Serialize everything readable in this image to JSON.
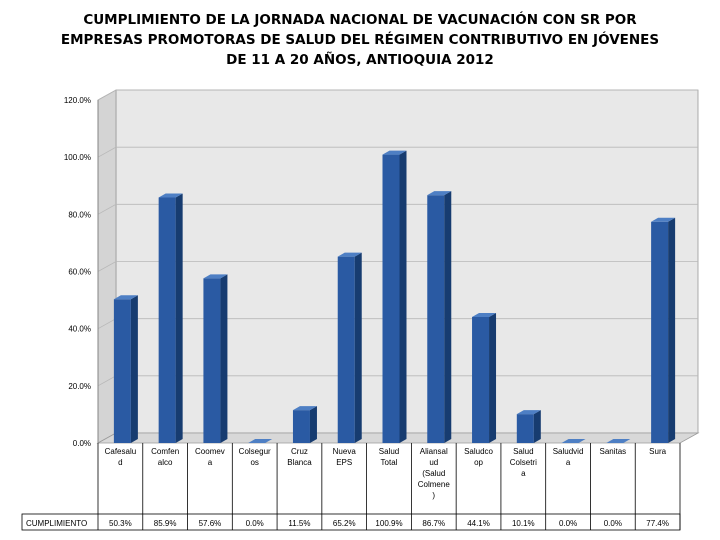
{
  "chart_data": {
    "type": "bar",
    "title_lines": [
      "CUMPLIMIENTO DE LA JORNADA NACIONAL DE VACUNACIÓN CON SR POR",
      "EMPRESAS PROMOTORAS  DE SALUD DEL RÉGIMEN CONTRIBUTIVO EN JÓVENES",
      "DE 11 A 20 AÑOS, ANTIOQUIA 2012"
    ],
    "yticks": [
      "0.0%",
      "20.0%",
      "40.0%",
      "60.0%",
      "80.0%",
      "100.0%",
      "120.0%"
    ],
    "ylim": [
      0,
      120
    ],
    "table_row_label": "CUMPLIMIENTO",
    "categories": [
      [
        "Cafesalu",
        "d"
      ],
      [
        "Comfen",
        "alco"
      ],
      [
        "Coomev",
        "a"
      ],
      [
        "Colsegur",
        "os"
      ],
      [
        "Cruz",
        "Blanca"
      ],
      [
        "Nueva",
        "EPS"
      ],
      [
        "Salud",
        "Total"
      ],
      [
        "Aliansal",
        "ud",
        "(Salud",
        "Colmene",
        ")"
      ],
      [
        "Saludco",
        "op"
      ],
      [
        "Salud",
        "Colsetri",
        "a"
      ],
      [
        "Saludvid",
        "a"
      ],
      [
        "Sanitas"
      ],
      [
        "Sura"
      ]
    ],
    "values": [
      50.3,
      85.9,
      57.6,
      0.0,
      11.5,
      65.2,
      100.9,
      86.7,
      44.1,
      10.1,
      0.0,
      0.0,
      77.4
    ],
    "value_labels": [
      "50.3%",
      "85.9%",
      "57.6%",
      "0.0%",
      "11.5%",
      "65.2%",
      "100.9%",
      "86.7%",
      "44.1%",
      "10.1%",
      "0.0%",
      "0.0%",
      "77.4%"
    ],
    "colors": {
      "bar_front": "#2a5aa3",
      "bar_side": "#173c70",
      "bar_top": "#4e7fc4",
      "wall": "#e8e8e8",
      "floor": "#d8d8d8",
      "grid": "#ffffff"
    }
  }
}
